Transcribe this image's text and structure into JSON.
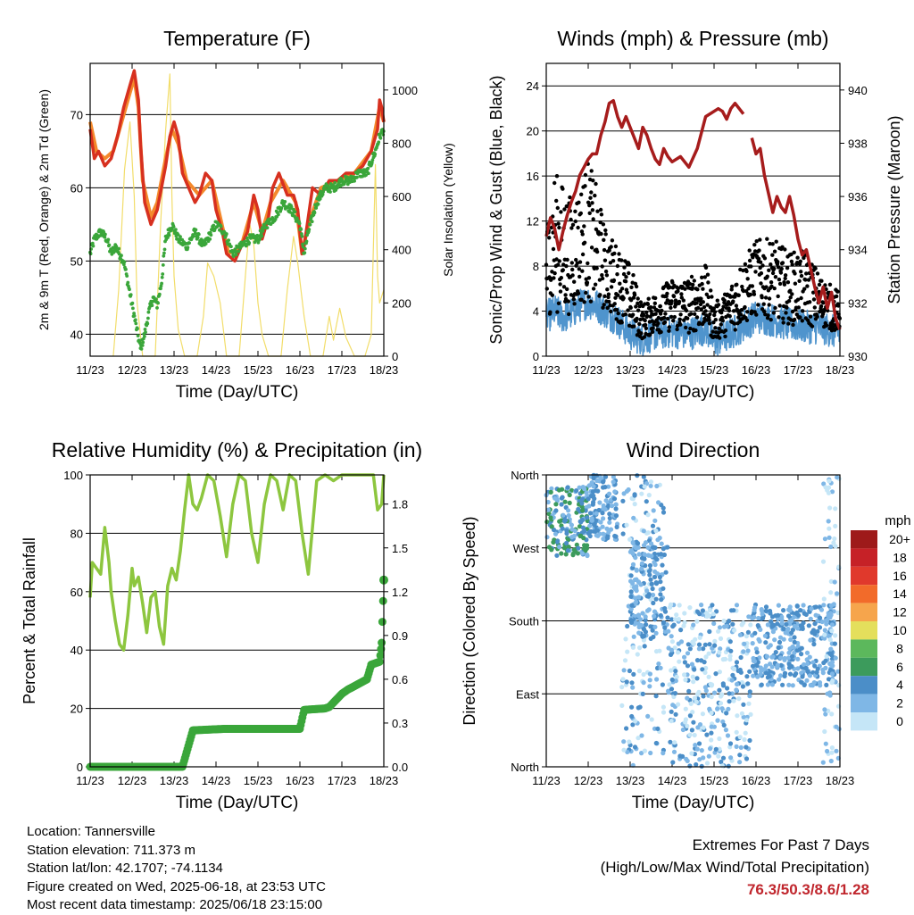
{
  "x_ticks": [
    "11/23",
    "12/23",
    "13/23",
    "14/23",
    "15/23",
    "16/23",
    "17/23",
    "18/23"
  ],
  "chart_data": [
    {
      "type": "line",
      "title": "Temperature (F)",
      "xlabel": "Time (Day/UTC)",
      "ylabel": "2m & 9m T (Red, Orange) & 2m Td (Green)",
      "y2label": "Solar Insolation (Yellow)",
      "x_start_day": 11,
      "x_end_day": 18,
      "ylim": [
        37,
        77
      ],
      "yticks": [
        40,
        50,
        60,
        70
      ],
      "y2lim": [
        0,
        1100
      ],
      "y2ticks": [
        0,
        200,
        400,
        600,
        800,
        1000
      ],
      "grid": "horizontal",
      "colors": {
        "t2m": "#d7301f",
        "t9m": "#f4892c",
        "td": "#3aa63a",
        "solar": "#f2dd6a"
      },
      "series": [
        {
          "key": "t2m",
          "x": [
            11.0,
            11.1,
            11.2,
            11.35,
            11.5,
            11.65,
            11.8,
            11.95,
            12.05,
            12.15,
            12.2,
            12.3,
            12.45,
            12.6,
            12.8,
            12.9,
            13.0,
            13.1,
            13.2,
            13.35,
            13.5,
            13.6,
            13.75,
            13.9,
            14.0,
            14.15,
            14.25,
            14.45,
            14.6,
            14.75,
            14.9,
            15.0,
            15.1,
            15.25,
            15.35,
            15.5,
            15.7,
            15.85,
            15.95,
            16.0,
            16.05,
            16.1,
            16.2,
            16.3,
            16.5,
            16.7,
            16.9,
            17.1,
            17.3,
            17.5,
            17.7,
            17.85,
            17.9,
            17.95,
            18.0
          ],
          "values": [
            68,
            64,
            65,
            63,
            64,
            67,
            71,
            74,
            76,
            72,
            66,
            58,
            55,
            57,
            63,
            67,
            69,
            67,
            62,
            60,
            58,
            59,
            62,
            61,
            57,
            54,
            51,
            50,
            52,
            54,
            59,
            57,
            53,
            56,
            60,
            62,
            59,
            59,
            57,
            54,
            51,
            52,
            56,
            60,
            59,
            61,
            61,
            62,
            62,
            63,
            65,
            68,
            72,
            71,
            69
          ]
        },
        {
          "key": "t9m",
          "x": [
            11.0,
            11.15,
            11.35,
            11.55,
            11.75,
            11.95,
            12.05,
            12.15,
            12.25,
            12.45,
            12.6,
            12.8,
            12.95,
            13.1,
            13.3,
            13.6,
            13.9,
            14.1,
            14.3,
            14.6,
            14.9,
            15.1,
            15.3,
            15.6,
            15.9,
            16.05,
            16.2,
            16.5,
            16.9,
            17.3,
            17.7,
            17.9,
            18.0
          ],
          "values": [
            69,
            65,
            64,
            65,
            69,
            73,
            75,
            71,
            61,
            56,
            58,
            64,
            68,
            66,
            61,
            59,
            61,
            56,
            51,
            52,
            58,
            54,
            58,
            61,
            58,
            51,
            55,
            60,
            61,
            62,
            65,
            71,
            69
          ]
        },
        {
          "key": "td",
          "x": [
            11.0,
            11.1,
            11.25,
            11.4,
            11.5,
            11.6,
            11.7,
            11.8,
            11.9,
            12.0,
            12.1,
            12.2,
            12.3,
            12.4,
            12.5,
            12.6,
            12.7,
            12.8,
            12.95,
            13.1,
            13.3,
            13.5,
            13.7,
            13.9,
            14.0,
            14.2,
            14.4,
            14.6,
            14.8,
            15.0,
            15.2,
            15.4,
            15.6,
            15.8,
            16.0,
            16.1,
            16.2,
            16.4,
            16.6,
            16.8,
            17.0,
            17.2,
            17.4,
            17.6,
            17.8,
            17.9,
            18.0
          ],
          "values": [
            51,
            53,
            54,
            53,
            51,
            52,
            51,
            50,
            47,
            44,
            41,
            38,
            40,
            43,
            45,
            44,
            47,
            53,
            55,
            53,
            52,
            54,
            52,
            54,
            55,
            54,
            51,
            52,
            53,
            53,
            55,
            56,
            58,
            57,
            55,
            51,
            54,
            58,
            60,
            60,
            61,
            61,
            62,
            62,
            65,
            67,
            68
          ]
        },
        {
          "key": "solar",
          "x": [
            11.55,
            11.68,
            11.82,
            11.95,
            12.05,
            12.12,
            12.25,
            12.55,
            12.68,
            12.8,
            12.9,
            12.95,
            13.0,
            13.1,
            13.25,
            13.55,
            13.7,
            13.8,
            13.95,
            14.1,
            14.25,
            14.55,
            14.7,
            14.8,
            14.9,
            15.0,
            15.1,
            15.25,
            15.55,
            15.7,
            15.85,
            15.95,
            16.1,
            16.25,
            16.55,
            16.7,
            16.8,
            16.95,
            17.1,
            17.3,
            17.55,
            17.7,
            17.8,
            17.85,
            17.9,
            18.0
          ],
          "values": [
            0,
            250,
            700,
            880,
            600,
            200,
            0,
            0,
            500,
            850,
            1060,
            600,
            300,
            100,
            0,
            0,
            150,
            350,
            300,
            200,
            0,
            0,
            300,
            500,
            420,
            200,
            80,
            0,
            0,
            250,
            450,
            350,
            150,
            0,
            0,
            150,
            60,
            180,
            70,
            0,
            0,
            80,
            720,
            300,
            200,
            250
          ]
        }
      ]
    },
    {
      "type": "scatter",
      "title": "Winds (mph) & Pressure (mb)",
      "xlabel": "Time (Day/UTC)",
      "ylabel": "Sonic/Prop Wind & Gust (Blue, Black)",
      "y2label": "Station Pressure (Maroon)",
      "x_start_day": 11,
      "x_end_day": 18,
      "ylim": [
        0,
        26
      ],
      "yticks": [
        0,
        4,
        8,
        12,
        16,
        20,
        24
      ],
      "y2lim": [
        930,
        941
      ],
      "y2ticks": [
        930,
        932,
        934,
        936,
        938,
        940
      ],
      "grid": "horizontal",
      "colors": {
        "wind": "#4f94cd",
        "gust": "#000000",
        "pressure": "#a61c1c"
      },
      "pressure_segments": [
        {
          "x": [
            11.0,
            11.1,
            11.2,
            11.3,
            11.4,
            11.5,
            11.6,
            11.7,
            11.8,
            11.9,
            12.0,
            12.1,
            12.2,
            12.3,
            12.4,
            12.5,
            12.6,
            12.7,
            12.8,
            12.9,
            13.0,
            13.1,
            13.2,
            13.3,
            13.4,
            13.5,
            13.6,
            13.7,
            13.8,
            13.9,
            14.0,
            14.2,
            14.4,
            14.6,
            14.8,
            15.0,
            15.1,
            15.2,
            15.3,
            15.4,
            15.5,
            15.6,
            15.7
          ],
          "values": [
            934.5,
            935.2,
            934.8,
            934.0,
            934.7,
            935.3,
            935.8,
            936.2,
            936.8,
            937.1,
            937.4,
            937.6,
            937.6,
            938.3,
            938.8,
            939.5,
            939.6,
            939.0,
            938.6,
            939.0,
            938.6,
            938.2,
            937.8,
            938.6,
            938.3,
            937.8,
            937.4,
            937.2,
            937.8,
            937.5,
            937.3,
            937.5,
            937.1,
            937.8,
            939.0,
            939.2,
            939.3,
            939.2,
            938.9,
            939.3,
            939.5,
            939.3,
            939.1
          ]
        },
        {
          "x": [
            15.9,
            16.0,
            16.1,
            16.2,
            16.3,
            16.4,
            16.5,
            16.6,
            16.7,
            16.8,
            16.9,
            17.0,
            17.1,
            17.2,
            17.3,
            17.4,
            17.5,
            17.6,
            17.7,
            17.8,
            17.9,
            18.0
          ],
          "values": [
            938.2,
            937.6,
            937.8,
            936.8,
            936.1,
            935.4,
            936.0,
            935.6,
            935.4,
            936.0,
            935.3,
            934.4,
            933.8,
            934.0,
            933.3,
            932.6,
            932.0,
            932.6,
            931.8,
            932.4,
            931.4,
            931.0
          ]
        }
      ],
      "wind_mean": {
        "x": [
          11.0,
          11.2,
          11.4,
          11.6,
          11.8,
          12.0,
          12.2,
          12.4,
          12.6,
          12.8,
          13.0,
          13.3,
          13.6,
          14.0,
          14.4,
          14.8,
          15.0,
          15.3,
          15.6,
          16.0,
          16.4,
          16.8,
          17.2,
          17.6,
          18.0
        ],
        "values": [
          3.5,
          4.0,
          3.5,
          3.8,
          4.5,
          4.8,
          4.5,
          4.0,
          3.5,
          2.8,
          2.0,
          1.5,
          2.0,
          2.2,
          2.0,
          2.5,
          1.3,
          1.8,
          2.5,
          3.5,
          3.2,
          2.8,
          2.6,
          2.5,
          2.0
        ]
      },
      "gust_envelope": {
        "x": [
          11.0,
          11.2,
          11.4,
          11.6,
          11.8,
          12.0,
          12.2,
          12.4,
          12.6,
          12.8,
          13.0,
          13.3,
          13.6,
          14.0,
          14.4,
          14.8,
          15.0,
          15.3,
          15.6,
          16.0,
          16.4,
          16.8,
          17.2,
          17.6,
          18.0
        ],
        "values": [
          10,
          14,
          13,
          12,
          13,
          15,
          13,
          10,
          9,
          8,
          7,
          4,
          5,
          6,
          6,
          7,
          4,
          5,
          7,
          9,
          9,
          8,
          8,
          6,
          5
        ]
      }
    },
    {
      "type": "line",
      "title": "Relative Humidity (%) & Precipitation (in)",
      "xlabel": "Time (Day/UTC)",
      "ylabel": "Percent & Total Rainfall",
      "x_start_day": 11,
      "x_end_day": 18,
      "ylim": [
        0,
        100
      ],
      "yticks": [
        0,
        20,
        40,
        60,
        80,
        100
      ],
      "y2lim": [
        0,
        2.0
      ],
      "y2ticks": [
        0.0,
        0.3,
        0.6,
        0.9,
        1.2,
        1.5,
        1.8
      ],
      "y2ticklabels": [
        "0.0",
        "0.3",
        "0.6",
        "0.9",
        "1.2",
        "1.5",
        "1.8"
      ],
      "grid": "horizontal",
      "colors": {
        "rh": "#8dc63f",
        "precip": "#3aa63a"
      },
      "series": [
        {
          "key": "rh",
          "x": [
            11.0,
            11.05,
            11.15,
            11.25,
            11.35,
            11.45,
            11.5,
            11.6,
            11.7,
            11.8,
            11.9,
            12.0,
            12.05,
            12.15,
            12.25,
            12.35,
            12.45,
            12.55,
            12.65,
            12.75,
            12.85,
            12.95,
            13.05,
            13.15,
            13.25,
            13.35,
            13.45,
            13.55,
            13.65,
            13.8,
            13.95,
            14.1,
            14.25,
            14.4,
            14.55,
            14.7,
            14.85,
            15.0,
            15.15,
            15.3,
            15.45,
            15.6,
            15.75,
            15.9,
            16.05,
            16.2,
            16.4,
            16.6,
            16.8,
            17.0,
            17.2,
            17.4,
            17.6,
            17.75,
            17.85,
            17.95,
            18.0
          ],
          "values": [
            58,
            70,
            68,
            66,
            82,
            70,
            60,
            50,
            42,
            40,
            52,
            68,
            62,
            65,
            56,
            46,
            58,
            60,
            48,
            42,
            62,
            68,
            64,
            74,
            88,
            100,
            90,
            88,
            92,
            100,
            98,
            86,
            72,
            90,
            100,
            98,
            80,
            70,
            90,
            100,
            98,
            88,
            100,
            98,
            80,
            66,
            98,
            100,
            98,
            100,
            100,
            100,
            100,
            100,
            88,
            90,
            100
          ]
        },
        {
          "key": "precip",
          "x": [
            11.0,
            13.2,
            13.3,
            13.45,
            14.2,
            15.2,
            16.0,
            16.1,
            16.6,
            16.7,
            17.0,
            17.15,
            17.6,
            17.7,
            17.9,
            17.95,
            18.0
          ],
          "values": [
            0.0,
            0.0,
            0.1,
            0.25,
            0.26,
            0.26,
            0.26,
            0.39,
            0.4,
            0.41,
            0.5,
            0.53,
            0.6,
            0.7,
            0.72,
            0.85,
            1.28
          ]
        }
      ]
    },
    {
      "type": "scatter",
      "title": "Wind Direction",
      "xlabel": "Time (Day/UTC)",
      "ylabel": "Direction (Colored By Speed)",
      "x_start_day": 11,
      "x_end_day": 18,
      "ylim": [
        0,
        360
      ],
      "yticks": [
        0,
        90,
        180,
        270,
        360
      ],
      "yticklabels": [
        "North",
        "East",
        "South",
        "West",
        "North"
      ],
      "grid": "horizontal",
      "legend": {
        "title": "mph",
        "placement": "right",
        "labels": [
          "20+",
          "18",
          "16",
          "14",
          "12",
          "10",
          "8",
          "6",
          "4",
          "2",
          "0"
        ],
        "colors": [
          "#9e1a1a",
          "#c62127",
          "#e0392c",
          "#f26b2a",
          "#f6a54c",
          "#e4df5c",
          "#5cb85c",
          "#3c9b5c",
          "#4b8ec8",
          "#7fb7e6",
          "#c5e6f7"
        ]
      },
      "clusters": [
        {
          "x": [
            11.0,
            12.0
          ],
          "dir": [
            260,
            345
          ],
          "speeds": [
            2,
            4,
            6
          ]
        },
        {
          "x": [
            12.0,
            12.7
          ],
          "dir": [
            280,
            360
          ],
          "speeds": [
            2,
            4
          ]
        },
        {
          "x": [
            12.8,
            13.8
          ],
          "dir": [
            0,
            360
          ],
          "speeds": [
            0,
            2,
            4
          ]
        },
        {
          "x": [
            13.0,
            13.9
          ],
          "dir": [
            160,
            280
          ],
          "speeds": [
            2,
            4
          ]
        },
        {
          "x": [
            13.9,
            15.9
          ],
          "dir": [
            0,
            200
          ],
          "speeds": [
            0,
            2,
            4
          ]
        },
        {
          "x": [
            15.9,
            17.9
          ],
          "dir": [
            100,
            200
          ],
          "speeds": [
            2,
            4
          ]
        },
        {
          "x": [
            17.6,
            18.0
          ],
          "dir": [
            0,
            360
          ],
          "speeds": [
            0,
            2
          ]
        }
      ]
    }
  ],
  "info": {
    "location": "Location: Tannersville",
    "elevation": "Station elevation: 711.373 m",
    "latlon": "Station lat/lon: 42.1707; -74.1134",
    "created": "Figure created on Wed, 2025-06-18, at 23:53 UTC",
    "recent": "Most recent data timestamp: 2025/06/18 23:15:00"
  },
  "extremes": {
    "line1": "Extremes For Past 7 Days",
    "line2": "(High/Low/Max Wind/Total Precipitation)",
    "values": "76.3/50.3/8.6/1.28"
  }
}
